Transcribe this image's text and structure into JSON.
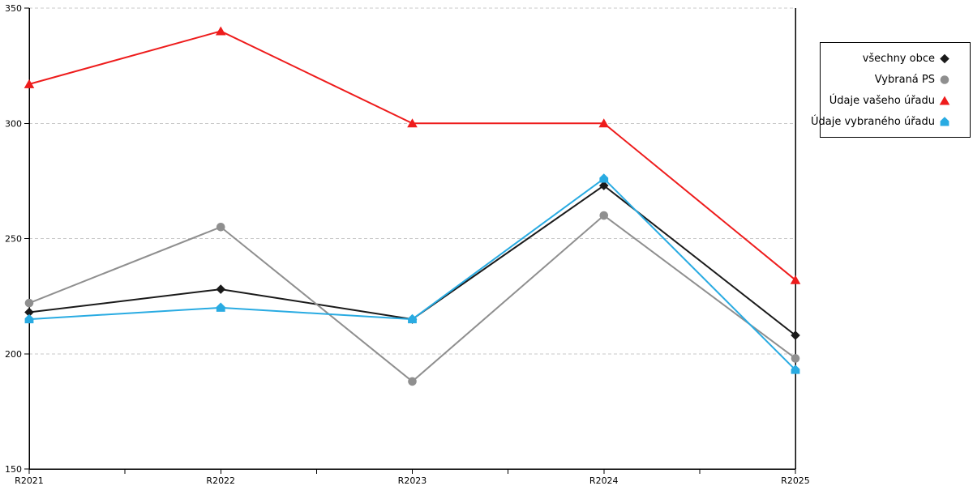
{
  "chart_data": {
    "type": "line",
    "title": "",
    "xlabel": "",
    "ylabel": "",
    "categories": [
      "R2021",
      "R2022",
      "R2023",
      "R2024",
      "R2025"
    ],
    "y_ticks": [
      350,
      300,
      250,
      200,
      150
    ],
    "ylim": [
      150,
      350
    ],
    "grid": "horizontal dashed",
    "legend_position": "outside top-right",
    "series": [
      {
        "name": "všechny obce",
        "color": "#1a1a1a",
        "marker": "diamond",
        "values": [
          218,
          228,
          215,
          273,
          208
        ]
      },
      {
        "name": "Vybraná PS",
        "color": "#8f8f8f",
        "marker": "circle",
        "values": [
          222,
          255,
          188,
          260,
          198
        ]
      },
      {
        "name": "Údaje vašeho úřadu",
        "color": "#ee1c1c",
        "marker": "triangle",
        "values": [
          317,
          340,
          300,
          300,
          232
        ]
      },
      {
        "name": "Údaje vybraného úřadu",
        "color": "#29abe2",
        "marker": "pentagon",
        "values": [
          215,
          220,
          215,
          276,
          193
        ]
      }
    ]
  },
  "colors": {
    "background": "#ffffff",
    "axis": "#000000",
    "gridline": "#c8c8c8",
    "text": "#000000"
  }
}
